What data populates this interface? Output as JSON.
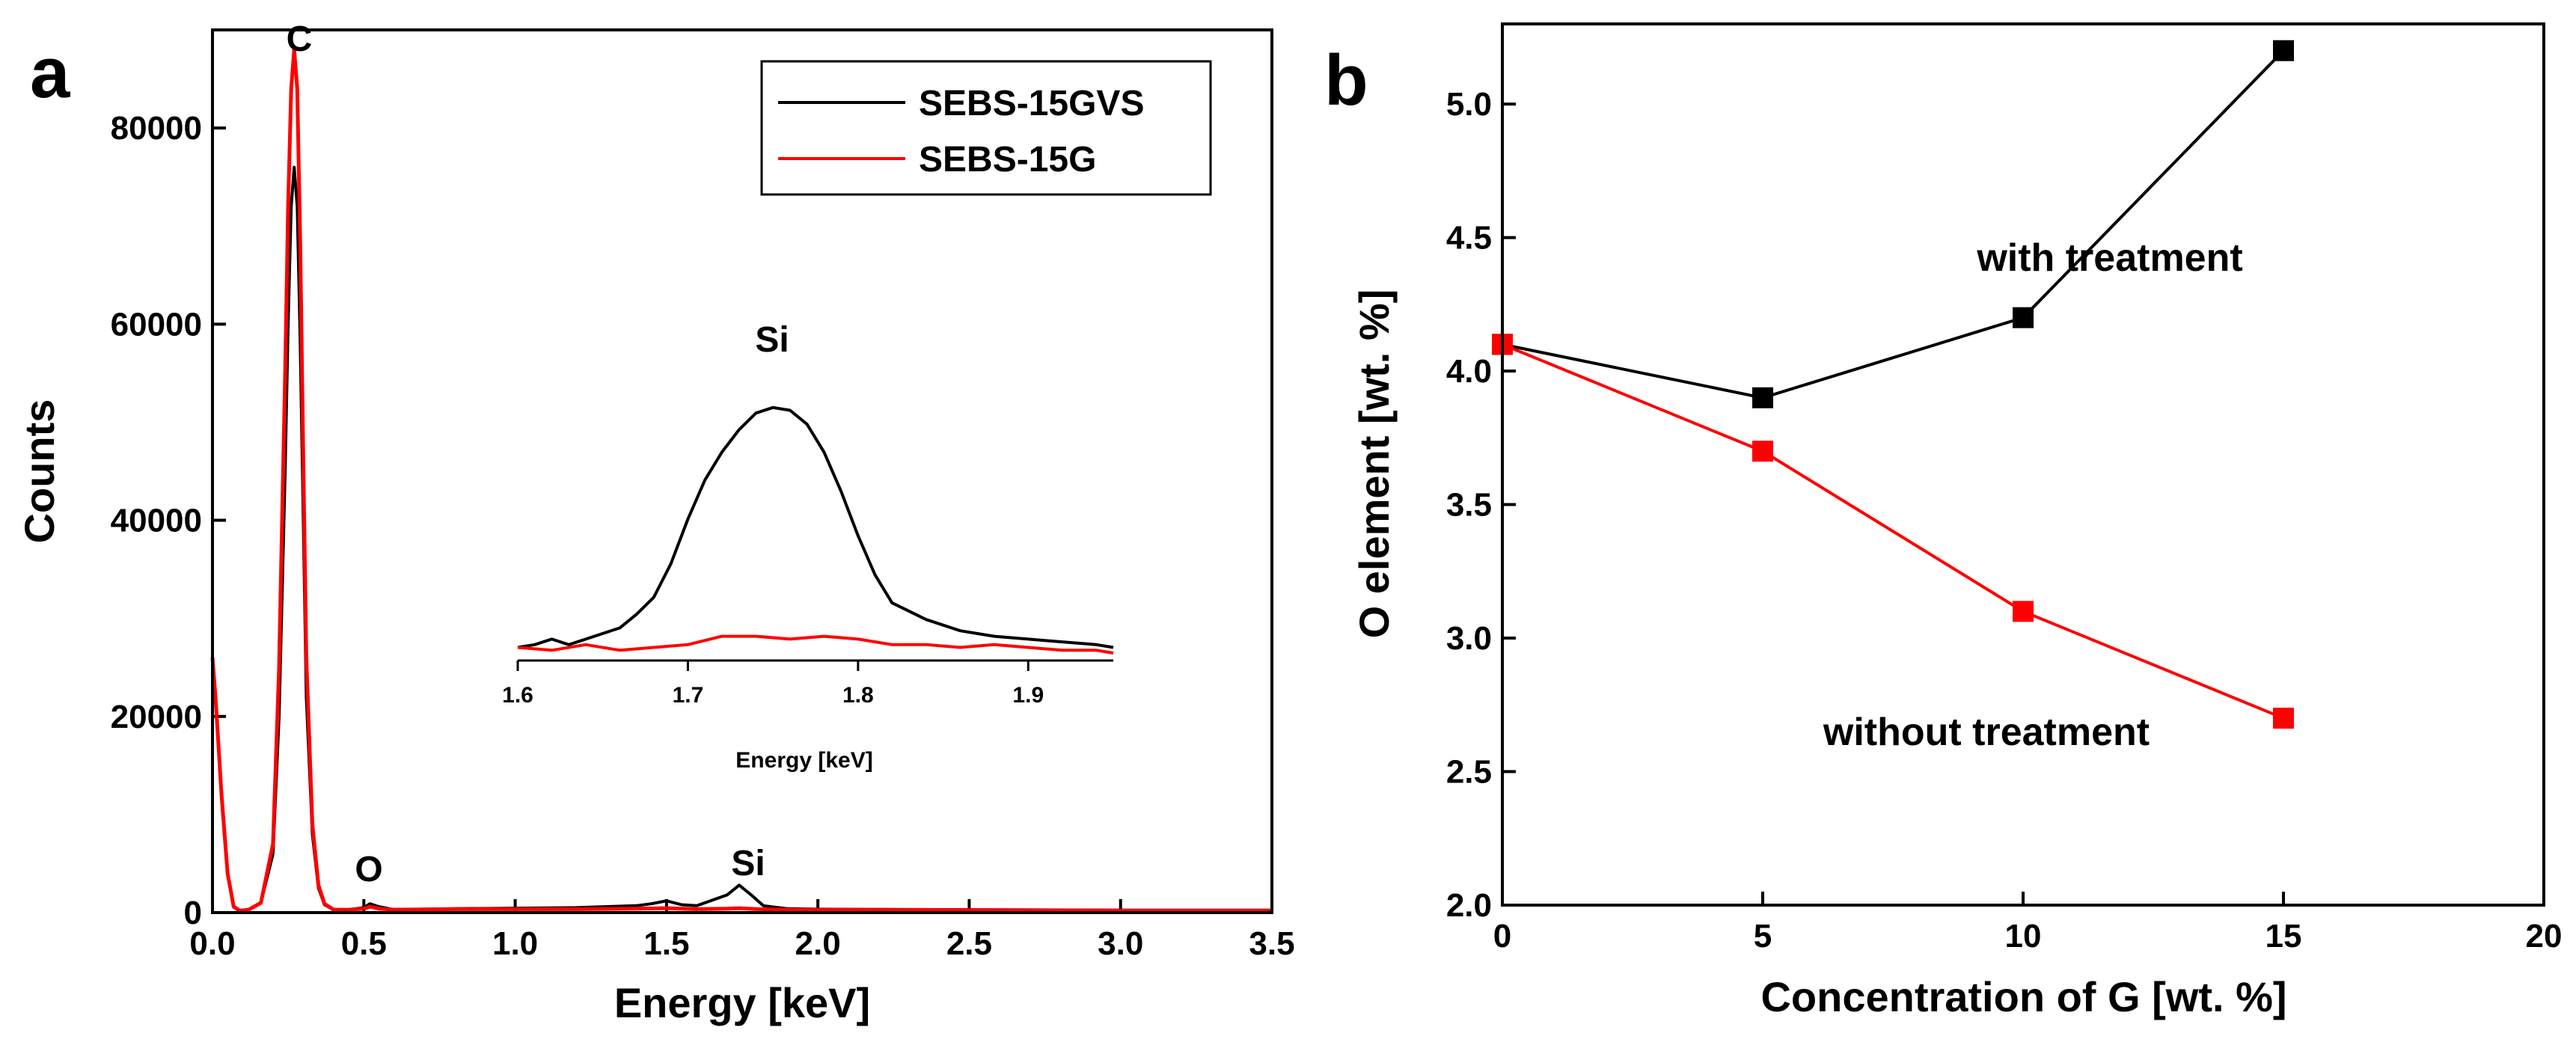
{
  "chart_data": [
    {
      "panel": "a",
      "type": "line",
      "xlabel": "Energy [keV]",
      "ylabel": "Counts",
      "xlim": [
        0.0,
        3.5
      ],
      "ylim": [
        0,
        90000
      ],
      "x_ticks": [
        "0.0",
        "0.5",
        "1.0",
        "1.5",
        "2.0",
        "2.5",
        "3.0",
        "3.5"
      ],
      "y_ticks": [
        "0",
        "20000",
        "40000",
        "60000",
        "80000"
      ],
      "legend": [
        "SEBS-15GVS",
        "SEBS-15G"
      ],
      "legend_position": "top-right",
      "annotations": [
        {
          "text": "C",
          "x": 0.28,
          "y": 92000
        },
        {
          "text": "O",
          "x": 0.52,
          "y": 2500
        },
        {
          "text": "Si",
          "x": 1.74,
          "y": 4000
        }
      ],
      "series": [
        {
          "name": "SEBS-15GVS",
          "color": "#000000",
          "x": [
            0.0,
            0.01,
            0.03,
            0.05,
            0.07,
            0.09,
            0.12,
            0.16,
            0.2,
            0.22,
            0.24,
            0.25,
            0.26,
            0.27,
            0.28,
            0.29,
            0.3,
            0.31,
            0.33,
            0.35,
            0.37,
            0.4,
            0.45,
            0.5,
            0.52,
            0.55,
            0.6,
            0.8,
            1.0,
            1.2,
            1.4,
            1.45,
            1.5,
            1.55,
            1.6,
            1.7,
            1.74,
            1.78,
            1.82,
            1.9,
            2.0,
            2.5,
            3.0,
            3.5
          ],
          "y": [
            26000,
            22000,
            12000,
            4000,
            600,
            200,
            300,
            1000,
            6000,
            20000,
            45000,
            60000,
            72000,
            76000,
            72000,
            58000,
            40000,
            22000,
            8000,
            2500,
            800,
            300,
            300,
            500,
            900,
            600,
            300,
            400,
            450,
            500,
            700,
            900,
            1200,
            800,
            700,
            1800,
            2800,
            1800,
            700,
            400,
            350,
            300,
            250,
            250
          ]
        },
        {
          "name": "SEBS-15G",
          "color": "#ff0000",
          "x": [
            0.0,
            0.01,
            0.03,
            0.05,
            0.07,
            0.09,
            0.12,
            0.16,
            0.2,
            0.22,
            0.24,
            0.25,
            0.26,
            0.27,
            0.28,
            0.29,
            0.3,
            0.31,
            0.33,
            0.35,
            0.37,
            0.4,
            0.45,
            0.5,
            0.52,
            0.55,
            0.6,
            0.8,
            1.0,
            1.2,
            1.4,
            1.5,
            1.6,
            1.7,
            1.74,
            1.8,
            1.9,
            2.0,
            2.5,
            3.0,
            3.5
          ],
          "y": [
            26000,
            22000,
            12000,
            4000,
            600,
            200,
            300,
            1000,
            7000,
            25000,
            55000,
            72000,
            84000,
            88000,
            84000,
            68000,
            46000,
            26000,
            9000,
            2800,
            900,
            300,
            300,
            400,
            600,
            400,
            300,
            350,
            350,
            350,
            400,
            450,
            350,
            400,
            450,
            350,
            300,
            300,
            250,
            200,
            200
          ]
        }
      ],
      "inset": {
        "type": "line",
        "xlabel": "Energy [keV]",
        "xlim": [
          1.6,
          1.95
        ],
        "ylim": [
          0,
          100
        ],
        "x_ticks": [
          "1.6",
          "1.7",
          "1.8",
          "1.9"
        ],
        "annotation": "Si",
        "series": [
          {
            "name": "SEBS-15GVS",
            "color": "#000000",
            "x": [
              1.6,
              1.61,
              1.62,
              1.63,
              1.64,
              1.65,
              1.66,
              1.67,
              1.68,
              1.69,
              1.7,
              1.71,
              1.72,
              1.73,
              1.74,
              1.75,
              1.76,
              1.77,
              1.78,
              1.79,
              1.8,
              1.81,
              1.82,
              1.84,
              1.86,
              1.88,
              1.9,
              1.92,
              1.94,
              1.95
            ],
            "y": [
              2,
              3,
              5,
              3,
              5,
              7,
              9,
              14,
              20,
              32,
              48,
              62,
              72,
              80,
              86,
              88,
              87,
              82,
              72,
              58,
              42,
              28,
              18,
              12,
              8,
              6,
              5,
              4,
              3,
              2
            ]
          },
          {
            "name": "SEBS-15G",
            "color": "#ff0000",
            "x": [
              1.6,
              1.62,
              1.64,
              1.66,
              1.68,
              1.7,
              1.72,
              1.74,
              1.76,
              1.78,
              1.8,
              1.82,
              1.84,
              1.86,
              1.88,
              1.9,
              1.92,
              1.94,
              1.95
            ],
            "y": [
              2,
              1,
              3,
              1,
              2,
              3,
              6,
              6,
              5,
              6,
              5,
              3,
              3,
              2,
              3,
              2,
              1,
              1,
              0
            ]
          }
        ]
      }
    },
    {
      "panel": "b",
      "type": "line",
      "xlabel": "Concentration of G [wt. %]",
      "ylabel": "O element [wt. %]",
      "xlim": [
        0,
        20
      ],
      "ylim": [
        2.0,
        5.3
      ],
      "x_ticks": [
        "0",
        "5",
        "10",
        "15",
        "20"
      ],
      "y_ticks": [
        "2.0",
        "2.5",
        "3.0",
        "3.5",
        "4.0",
        "4.5",
        "5.0"
      ],
      "series": [
        {
          "name": "with treatment",
          "color": "#000000",
          "x": [
            0,
            5,
            10,
            15
          ],
          "y": [
            4.1,
            3.9,
            4.2,
            5.2
          ]
        },
        {
          "name": "without treatment",
          "color": "#ff0000",
          "x": [
            0,
            5,
            10,
            15
          ],
          "y": [
            4.1,
            3.7,
            3.1,
            2.7
          ]
        }
      ]
    }
  ]
}
